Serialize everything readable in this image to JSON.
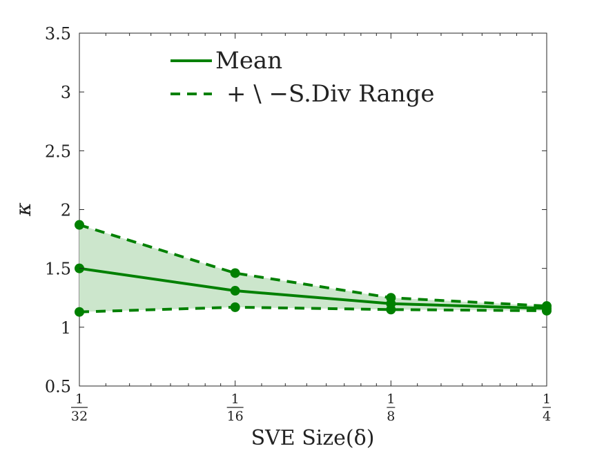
{
  "chart_data": {
    "type": "line",
    "title": "",
    "xlabel": "SVE Size(δ)",
    "ylabel": "κ",
    "xscale": "log2",
    "xlim": [
      0.03125,
      0.25
    ],
    "ylim": [
      0.5,
      3.5
    ],
    "yticks": [
      0.5,
      1,
      1.5,
      2,
      2.5,
      3,
      3.5
    ],
    "ytick_labels": [
      "0.5",
      "1",
      "1.5",
      "2",
      "2.5",
      "3",
      "3.5"
    ],
    "x": [
      0.03125,
      0.0625,
      0.125,
      0.25
    ],
    "xtick_labels": [
      {
        "num": "1",
        "den": "32"
      },
      {
        "num": "1",
        "den": "16"
      },
      {
        "num": "1",
        "den": "8"
      },
      {
        "num": "1",
        "den": "4"
      }
    ],
    "series": [
      {
        "name": "Mean",
        "style": "solid",
        "values": [
          1.5,
          1.31,
          1.2,
          1.16
        ]
      },
      {
        "name": "+ \\ −S.Div Range",
        "style": "dashed",
        "role": "upper",
        "values": [
          1.87,
          1.46,
          1.25,
          1.18
        ]
      },
      {
        "name": "+ \\ −S.Div Range",
        "style": "dashed",
        "role": "lower",
        "values": [
          1.13,
          1.17,
          1.15,
          1.14
        ]
      }
    ],
    "legend": {
      "position": "top-center",
      "entries": [
        "Mean",
        "+ \\ −S.Div Range"
      ]
    },
    "colors": {
      "line": "#008000",
      "fill": "#cce6cc",
      "axis": "#262626"
    },
    "grid": false
  }
}
